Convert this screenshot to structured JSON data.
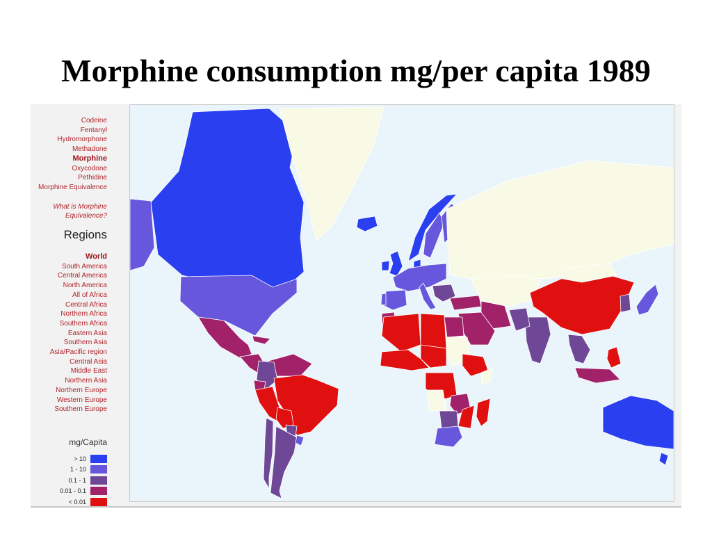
{
  "title": "Morphine consumption mg/per capita 1989",
  "drugs": {
    "items": [
      "Codeine",
      "Fentanyl",
      "Hydromorphone",
      "Methadone",
      "Morphine",
      "Oxycodone",
      "Pethidine",
      "Morphine Equivalence"
    ],
    "selected": "Morphine",
    "help_link": "What is Morphine Equivalence?"
  },
  "regions": {
    "heading": "Regions",
    "items": [
      "World",
      "South America",
      "Central America",
      "North America",
      "All of Africa",
      "Central Africa",
      "Northern Africa",
      "Southern Africa",
      "Eastern Asia",
      "Southern Asia",
      "Asia/Pacific region",
      "Central Asia",
      "Middle East",
      "Northern Asia",
      "Northern Europe",
      "Western Europe",
      "Southern Europe"
    ],
    "selected": "World"
  },
  "legend": {
    "heading": "mg/Capita",
    "bins": [
      {
        "label": "> 10",
        "color": "#2a3ff0"
      },
      {
        "label": "1 - 10",
        "color": "#6657dc"
      },
      {
        "label": "0.1 - 1",
        "color": "#6e4796"
      },
      {
        "label": "0.01 - 0.1",
        "color": "#a2226a"
      },
      {
        "label": "< 0.01",
        "color": "#e00f10"
      }
    ]
  },
  "map": {
    "ocean_color": "#eaf4fb",
    "no_data_color": "#f8fae6",
    "countries": [
      {
        "name": "Canada",
        "bin": "> 10"
      },
      {
        "name": "Alaska",
        "bin": "1 - 10"
      },
      {
        "name": "Greenland",
        "bin": "no data"
      },
      {
        "name": "Iceland",
        "bin": "> 10"
      },
      {
        "name": "United States",
        "bin": "1 - 10"
      },
      {
        "name": "Mexico",
        "bin": "0.01 - 0.1"
      },
      {
        "name": "Central America",
        "bin": "0.01 - 0.1"
      },
      {
        "name": "Cuba",
        "bin": "0.01 - 0.1"
      },
      {
        "name": "Venezuela / Guianas",
        "bin": "0.01 - 0.1"
      },
      {
        "name": "Colombia",
        "bin": "0.1 - 1"
      },
      {
        "name": "Ecuador",
        "bin": "0.01 - 0.1"
      },
      {
        "name": "Brazil",
        "bin": "< 0.01"
      },
      {
        "name": "Peru",
        "bin": "< 0.01"
      },
      {
        "name": "Bolivia",
        "bin": "< 0.01"
      },
      {
        "name": "Paraguay",
        "bin": "0.1 - 1"
      },
      {
        "name": "Argentina",
        "bin": "0.1 - 1"
      },
      {
        "name": "Chile",
        "bin": "0.1 - 1"
      },
      {
        "name": "Uruguay",
        "bin": "1 - 10"
      },
      {
        "name": "United Kingdom",
        "bin": "> 10"
      },
      {
        "name": "Ireland",
        "bin": "> 10"
      },
      {
        "name": "Norway",
        "bin": "> 10"
      },
      {
        "name": "Sweden",
        "bin": "1 - 10"
      },
      {
        "name": "Finland",
        "bin": "1 - 10"
      },
      {
        "name": "Denmark",
        "bin": "> 10"
      },
      {
        "name": "Western Europe",
        "bin": "1 - 10"
      },
      {
        "name": "Spain",
        "bin": "1 - 10"
      },
      {
        "name": "Portugal",
        "bin": "1 - 10"
      },
      {
        "name": "Italy",
        "bin": "1 - 10"
      },
      {
        "name": "Balkans",
        "bin": "0.1 - 1"
      },
      {
        "name": "Turkey",
        "bin": "0.01 - 0.1"
      },
      {
        "name": "Iran",
        "bin": "0.01 - 0.1"
      },
      {
        "name": "Saudi Arabia",
        "bin": "0.01 - 0.1"
      },
      {
        "name": "Russia",
        "bin": "no data"
      },
      {
        "name": "Central Asia",
        "bin": "no data"
      },
      {
        "name": "Morocco",
        "bin": "0.01 - 0.1"
      },
      {
        "name": "Algeria",
        "bin": "< 0.01"
      },
      {
        "name": "Libya",
        "bin": "< 0.01"
      },
      {
        "name": "Egypt",
        "bin": "0.01 - 0.1"
      },
      {
        "name": "Chad / Niger",
        "bin": "< 0.01"
      },
      {
        "name": "Sudan",
        "bin": "no data"
      },
      {
        "name": "West Africa",
        "bin": "< 0.01"
      },
      {
        "name": "Ethiopia",
        "bin": "< 0.01"
      },
      {
        "name": "Somalia",
        "bin": "no data"
      },
      {
        "name": "Congo",
        "bin": "< 0.01"
      },
      {
        "name": "Tanzania",
        "bin": "0.01 - 0.1"
      },
      {
        "name": "Mozambique",
        "bin": "< 0.01"
      },
      {
        "name": "Angola",
        "bin": "no data"
      },
      {
        "name": "Zambia",
        "bin": "0.1 - 1"
      },
      {
        "name": "South Africa",
        "bin": "1 - 10"
      },
      {
        "name": "Madagascar",
        "bin": "< 0.01"
      },
      {
        "name": "India",
        "bin": "0.1 - 1"
      },
      {
        "name": "Pakistan",
        "bin": "0.1 - 1"
      },
      {
        "name": "China",
        "bin": "< 0.01"
      },
      {
        "name": "Mongolia",
        "bin": "no data"
      },
      {
        "name": "Korea",
        "bin": "0.1 - 1"
      },
      {
        "name": "Japan",
        "bin": "1 - 10"
      },
      {
        "name": "Southeast Asia",
        "bin": "0.1 - 1"
      },
      {
        "name": "Philippines",
        "bin": "< 0.01"
      },
      {
        "name": "Indonesia",
        "bin": "0.01 - 0.1"
      },
      {
        "name": "Australia",
        "bin": "> 10"
      },
      {
        "name": "New Zealand",
        "bin": "> 10"
      }
    ]
  }
}
